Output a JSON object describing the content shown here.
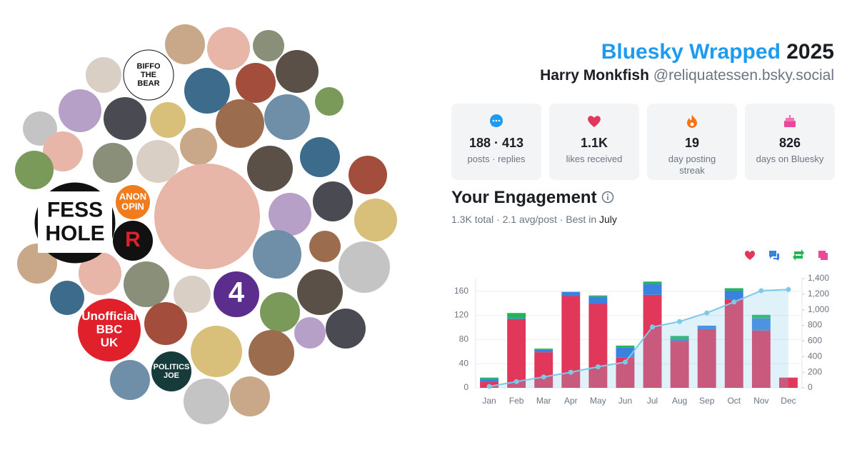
{
  "header": {
    "title": "Bluesky Wrapped",
    "year": "2025",
    "name": "Harry Monkfish",
    "handle": "@reliquatessen.bsky.social"
  },
  "stats": [
    {
      "value": "188 · 413",
      "label": "posts · replies"
    },
    {
      "value": "1.1K",
      "label": "likes received"
    },
    {
      "value": "19",
      "label": "day posting streak"
    },
    {
      "value": "826",
      "label": "days on Bluesky"
    }
  ],
  "avatars": [
    [
      "BIFFO",
      "THE",
      "BEAR"
    ],
    [
      "FESS",
      "HOLE"
    ],
    [
      "ANON",
      "OPIN"
    ],
    [
      "R"
    ],
    [
      "4"
    ],
    [
      "Unofficial",
      "BBC",
      "UK"
    ],
    [
      "POLITICS",
      "JOE"
    ]
  ],
  "engagement": {
    "title": "Your Engagement",
    "summary": "1.3K total · 2.1 avg/post · Best in",
    "best": "July"
  },
  "chart_data": {
    "type": "bar",
    "stacked": true,
    "categories": [
      "Jan",
      "Feb",
      "Mar",
      "Apr",
      "May",
      "Jun",
      "Jul",
      "Aug",
      "Sep",
      "Oct",
      "Nov",
      "Dec"
    ],
    "series": [
      {
        "color": "#e0375a",
        "values": [
          10,
          113,
          59,
          152,
          139,
          50,
          154,
          78,
          97,
          146,
          95,
          17
        ]
      },
      {
        "color": "#3b82e0",
        "values": [
          5,
          2,
          4,
          7,
          12,
          17,
          18,
          3,
          6,
          15,
          20,
          0
        ]
      },
      {
        "color": "#22b455",
        "values": [
          2,
          9,
          2,
          0,
          2,
          3,
          4,
          5,
          0,
          4,
          6,
          0
        ]
      },
      {
        "color": "#ec4899",
        "values": [
          0,
          0,
          0,
          0,
          0,
          0,
          0,
          0,
          0,
          0,
          0,
          0
        ]
      },
      {
        "color": "#7ec8e8",
        "axis": "y2",
        "type": "line",
        "values": [
          18,
          80,
          140,
          200,
          270,
          330,
          780,
          850,
          960,
          1100,
          1245,
          1260
        ]
      }
    ],
    "ylim": [
      0,
      181
    ],
    "yticks": [
      0,
      40,
      80,
      120,
      160
    ],
    "y2lim": [
      0,
      1400
    ],
    "y2ticks": [
      0,
      200,
      400,
      600,
      800,
      {
        "value": 1000,
        "label": "1,000"
      },
      {
        "value": 1200,
        "label": "1,200"
      },
      {
        "value": 1400,
        "label": "1,400"
      }
    ],
    "grid": true
  }
}
